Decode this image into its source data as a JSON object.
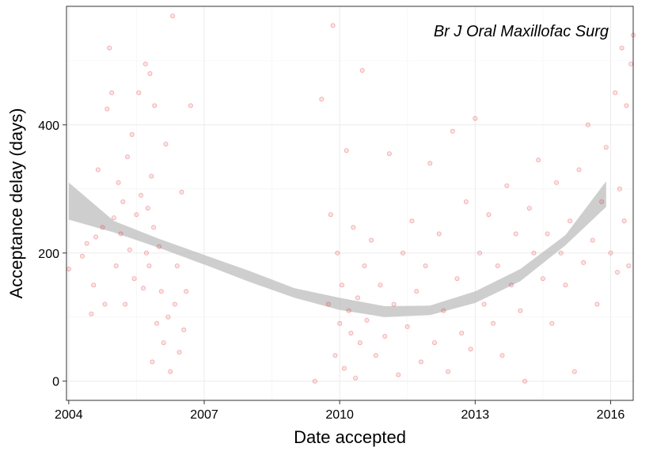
{
  "chart_data": {
    "type": "scatter",
    "title": "",
    "annotation": "Br J Oral Maxillofac Surg",
    "xlabel": "Date accepted",
    "ylabel": "Acceptance delay (days)",
    "xlim": [
      2003.95,
      2016.5
    ],
    "ylim": [
      -30,
      585
    ],
    "xticks": [
      2004,
      2007,
      2010,
      2013,
      2016
    ],
    "yticks": [
      0,
      200,
      400
    ],
    "grid": true,
    "legend": "none",
    "point_color": "#e31a1c",
    "band_color": "#bdbdbd",
    "smooth_band": {
      "x": [
        2004.0,
        2005.0,
        2006.0,
        2007.0,
        2008.0,
        2009.0,
        2010.0,
        2011.0,
        2012.0,
        2013.0,
        2014.0,
        2015.0,
        2015.9
      ],
      "lower": [
        252,
        232,
        208,
        182,
        155,
        130,
        111,
        100,
        103,
        122,
        156,
        212,
        272
      ],
      "upper": [
        310,
        250,
        222,
        197,
        172,
        145,
        130,
        117,
        118,
        140,
        175,
        228,
        312
      ]
    },
    "points": [
      [
        2004.0,
        175
      ],
      [
        2004.3,
        195
      ],
      [
        2004.4,
        215
      ],
      [
        2004.5,
        105
      ],
      [
        2004.55,
        150
      ],
      [
        2004.6,
        225
      ],
      [
        2004.65,
        330
      ],
      [
        2004.75,
        240
      ],
      [
        2004.8,
        120
      ],
      [
        2004.85,
        425
      ],
      [
        2004.9,
        520
      ],
      [
        2004.95,
        450
      ],
      [
        2005.0,
        255
      ],
      [
        2005.05,
        180
      ],
      [
        2005.1,
        310
      ],
      [
        2005.15,
        230
      ],
      [
        2005.2,
        280
      ],
      [
        2005.25,
        120
      ],
      [
        2005.3,
        350
      ],
      [
        2005.35,
        205
      ],
      [
        2005.4,
        385
      ],
      [
        2005.45,
        160
      ],
      [
        2005.5,
        260
      ],
      [
        2005.55,
        450
      ],
      [
        2005.6,
        290
      ],
      [
        2005.65,
        145
      ],
      [
        2005.7,
        495
      ],
      [
        2005.72,
        200
      ],
      [
        2005.75,
        270
      ],
      [
        2005.78,
        180
      ],
      [
        2005.8,
        480
      ],
      [
        2005.83,
        320
      ],
      [
        2005.85,
        30
      ],
      [
        2005.88,
        240
      ],
      [
        2005.9,
        430
      ],
      [
        2005.95,
        90
      ],
      [
        2006.0,
        210
      ],
      [
        2006.05,
        140
      ],
      [
        2006.1,
        60
      ],
      [
        2006.15,
        370
      ],
      [
        2006.2,
        100
      ],
      [
        2006.25,
        15
      ],
      [
        2006.3,
        570
      ],
      [
        2006.35,
        120
      ],
      [
        2006.4,
        180
      ],
      [
        2006.45,
        45
      ],
      [
        2006.5,
        295
      ],
      [
        2006.55,
        80
      ],
      [
        2006.6,
        140
      ],
      [
        2006.7,
        430
      ],
      [
        2009.45,
        0
      ],
      [
        2009.6,
        440
      ],
      [
        2009.75,
        120
      ],
      [
        2009.8,
        260
      ],
      [
        2009.85,
        555
      ],
      [
        2009.9,
        40
      ],
      [
        2009.95,
        200
      ],
      [
        2010.0,
        90
      ],
      [
        2010.05,
        150
      ],
      [
        2010.1,
        20
      ],
      [
        2010.15,
        360
      ],
      [
        2010.2,
        110
      ],
      [
        2010.25,
        75
      ],
      [
        2010.3,
        240
      ],
      [
        2010.35,
        5
      ],
      [
        2010.4,
        130
      ],
      [
        2010.45,
        60
      ],
      [
        2010.5,
        485
      ],
      [
        2010.55,
        180
      ],
      [
        2010.6,
        95
      ],
      [
        2010.7,
        220
      ],
      [
        2010.8,
        40
      ],
      [
        2010.9,
        150
      ],
      [
        2011.0,
        70
      ],
      [
        2011.1,
        355
      ],
      [
        2011.2,
        120
      ],
      [
        2011.3,
        10
      ],
      [
        2011.4,
        200
      ],
      [
        2011.5,
        85
      ],
      [
        2011.6,
        250
      ],
      [
        2011.7,
        140
      ],
      [
        2011.8,
        30
      ],
      [
        2011.9,
        180
      ],
      [
        2012.0,
        340
      ],
      [
        2012.1,
        60
      ],
      [
        2012.2,
        230
      ],
      [
        2012.3,
        110
      ],
      [
        2012.4,
        15
      ],
      [
        2012.5,
        390
      ],
      [
        2012.6,
        160
      ],
      [
        2012.7,
        75
      ],
      [
        2012.8,
        280
      ],
      [
        2012.9,
        50
      ],
      [
        2013.0,
        410
      ],
      [
        2013.1,
        200
      ],
      [
        2013.2,
        120
      ],
      [
        2013.3,
        260
      ],
      [
        2013.4,
        90
      ],
      [
        2013.5,
        180
      ],
      [
        2013.6,
        40
      ],
      [
        2013.7,
        305
      ],
      [
        2013.8,
        150
      ],
      [
        2013.9,
        230
      ],
      [
        2014.0,
        110
      ],
      [
        2014.1,
        0
      ],
      [
        2014.2,
        270
      ],
      [
        2014.3,
        200
      ],
      [
        2014.4,
        345
      ],
      [
        2014.5,
        160
      ],
      [
        2014.6,
        230
      ],
      [
        2014.7,
        90
      ],
      [
        2014.8,
        310
      ],
      [
        2014.9,
        200
      ],
      [
        2015.0,
        150
      ],
      [
        2015.1,
        250
      ],
      [
        2015.2,
        15
      ],
      [
        2015.3,
        330
      ],
      [
        2015.4,
        185
      ],
      [
        2015.5,
        400
      ],
      [
        2015.6,
        220
      ],
      [
        2015.7,
        120
      ],
      [
        2015.8,
        280
      ],
      [
        2015.9,
        365
      ],
      [
        2016.0,
        200
      ],
      [
        2016.1,
        450
      ],
      [
        2016.15,
        170
      ],
      [
        2016.2,
        300
      ],
      [
        2016.25,
        520
      ],
      [
        2016.3,
        250
      ],
      [
        2016.35,
        430
      ],
      [
        2016.4,
        180
      ],
      [
        2016.45,
        495
      ],
      [
        2016.5,
        540
      ]
    ]
  }
}
